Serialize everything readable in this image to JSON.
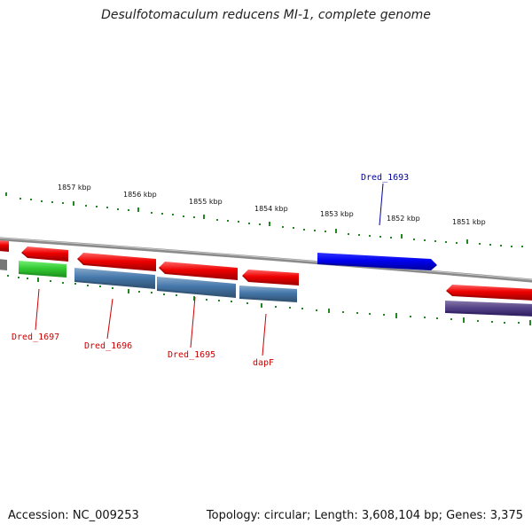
{
  "title": "Desulfotomaculum reducens MI-1, complete genome",
  "footer": {
    "accession": "Accession: NC_009253",
    "summary": "Topology: circular; Length: 3,608,104 bp; Genes: 3,375"
  },
  "kbp_labels": [
    "1857 kbp",
    "1856 kbp",
    "1855 kbp",
    "1854 kbp",
    "1853 kbp",
    "1852 kbp",
    "1851 kbp"
  ],
  "gene_labels": [
    {
      "text": "Dred_1693",
      "color": "#000099"
    },
    {
      "text": "Dred_1697",
      "color": "#cc0000"
    },
    {
      "text": "Dred_1696",
      "color": "#cc0000"
    },
    {
      "text": "Dred_1695",
      "color": "#cc0000"
    },
    {
      "text": "dapF",
      "color": "#cc0000"
    }
  ],
  "colors": {
    "forward_gene": "#0000ee",
    "reverse_gene": "#ee0000",
    "cog_green": "#33cc33",
    "cog_blue": "#4477aa",
    "cog_purple": "#554488",
    "backbone": "#888888",
    "tick": "#228822"
  }
}
